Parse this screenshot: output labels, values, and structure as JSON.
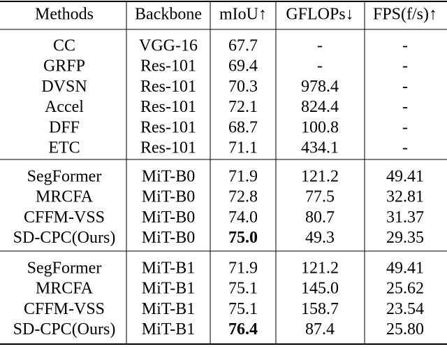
{
  "table": {
    "header": [
      "Methods",
      "Backbone",
      "mIoU↑",
      "GFLOPs↓",
      "FPS(f/s)↑"
    ],
    "groups": [
      {
        "rows": [
          [
            "CC",
            "VGG-16",
            "67.7",
            "-",
            "-"
          ],
          [
            "GRFP",
            "Res-101",
            "69.4",
            "-",
            "-"
          ],
          [
            "DVSN",
            "Res-101",
            "70.3",
            "978.4",
            "-"
          ],
          [
            "Accel",
            "Res-101",
            "72.1",
            "824.4",
            "-"
          ],
          [
            "DFF",
            "Res-101",
            "68.7",
            "100.8",
            "-"
          ],
          [
            "ETC",
            "Res-101",
            "71.1",
            "434.1",
            "-"
          ]
        ]
      },
      {
        "rows": [
          [
            "SegFormer",
            "MiT-B0",
            "71.9",
            "121.2",
            "49.41"
          ],
          [
            "MRCFA",
            "MiT-B0",
            "72.8",
            "77.5",
            "32.81"
          ],
          [
            "CFFM-VSS",
            "MiT-B0",
            "74.0",
            "80.7",
            "31.37"
          ],
          [
            "SD-CPC(Ours)",
            "MiT-B0",
            "75.0",
            "49.3",
            "29.35"
          ]
        ]
      },
      {
        "rows": [
          [
            "SegFormer",
            "MiT-B1",
            "71.9",
            "121.2",
            "49.41"
          ],
          [
            "MRCFA",
            "MiT-B1",
            "75.1",
            "145.0",
            "25.62"
          ],
          [
            "CFFM-VSS",
            "MiT-B1",
            "75.1",
            "158.7",
            "23.54"
          ],
          [
            "SD-CPC(Ours)",
            "MiT-B1",
            "76.4",
            "87.4",
            "25.80"
          ]
        ]
      }
    ]
  }
}
